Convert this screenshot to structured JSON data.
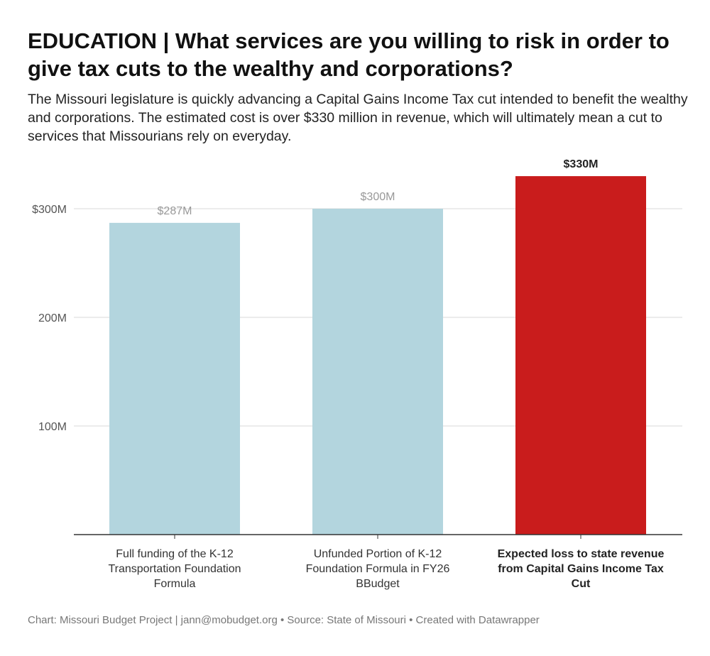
{
  "title": "EDUCATION | What services are you willing to risk in order to give tax cuts to the wealthy and corporations?",
  "subtitle": "The Missouri legislature is quickly advancing a Capital Gains Income Tax cut intended to benefit the wealthy and corporations. The estimated cost is over $330 million in revenue, which will ultimately mean a cut to services that Missourians rely on everyday.",
  "footer": "Chart: Missouri Budget Project | jann@mobudget.org • Source: State of Missouri • Created with Datawrapper",
  "chart_data": {
    "type": "bar",
    "title": "EDUCATION | What services are you willing to risk in order to give tax cuts to the wealthy and corporations?",
    "categories": [
      [
        "Full funding of the K-12",
        "Transportation Foundation",
        "Formula"
      ],
      [
        "Unfunded Portion of K-12",
        "Foundation Formula in FY26",
        "BBudget"
      ],
      [
        "Expected loss to state revenue",
        "from Capital Gains Income Tax",
        "Cut"
      ]
    ],
    "values": [
      287,
      300,
      330
    ],
    "value_labels": [
      "$287M",
      "$300M",
      "$330M"
    ],
    "colors": [
      "#b3d5de",
      "#b3d5de",
      "#c91c1c"
    ],
    "highlight": [
      false,
      false,
      true
    ],
    "yticks": [
      100,
      200,
      300
    ],
    "ytick_labels": [
      "100M",
      "200M",
      "$300M"
    ],
    "ylim": [
      0,
      340
    ],
    "xlabel": "",
    "ylabel": "",
    "grid": true
  }
}
